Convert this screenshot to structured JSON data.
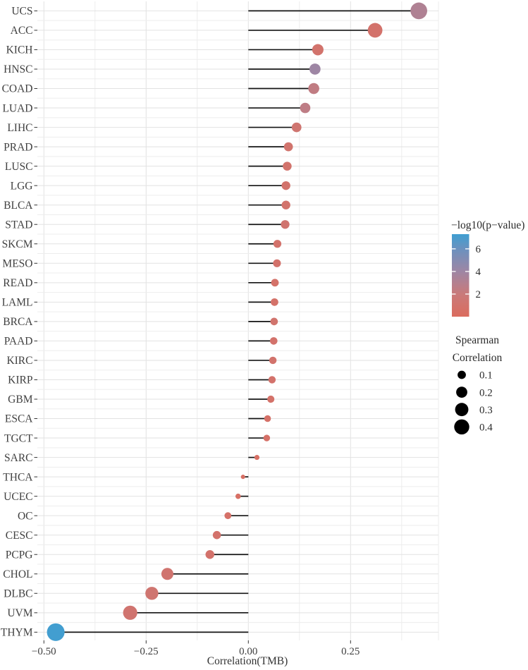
{
  "figure": {
    "background": "#ffffff",
    "stem_color": "#141414",
    "grid_major_color": "#e2e2e2",
    "grid_minor_color": "#ededed",
    "axis_text_color": "#404040",
    "legend_text_color": "#2b2b2b",
    "tick_mark_color": "#333333"
  },
  "chart_data": {
    "type": "lollipop",
    "orientation": "horizontal",
    "title": "",
    "xlabel": "Correlation(TMB)",
    "ylabel": "",
    "xlim": [
      -0.516,
      0.465
    ],
    "x_major_ticks": [
      -0.5,
      -0.25,
      0.0,
      0.25
    ],
    "x_minor_ticks": [
      -0.375,
      -0.125,
      0.125,
      0.375
    ],
    "x_tick_labels": [
      "−0.50",
      "−0.25",
      "0.00",
      "0.25"
    ],
    "grid": true,
    "categories": [
      "UCS",
      "ACC",
      "KICH",
      "HNSC",
      "COAD",
      "LUAD",
      "LIHC",
      "PRAD",
      "LUSC",
      "LGG",
      "BLCA",
      "STAD",
      "SKCM",
      "MESO",
      "READ",
      "LAML",
      "BRCA",
      "PAAD",
      "KIRC",
      "KIRP",
      "GBM",
      "ESCA",
      "TGCT",
      "SARC",
      "THCA",
      "UCEC",
      "OC",
      "CESC",
      "PCPG",
      "CHOL",
      "DLBC",
      "UVM",
      "THYM"
    ],
    "series": [
      {
        "name": "Spearman Correlation",
        "values": [
          0.417,
          0.31,
          0.17,
          0.163,
          0.16,
          0.139,
          0.118,
          0.098,
          0.095,
          0.092,
          0.092,
          0.09,
          0.071,
          0.07,
          0.065,
          0.064,
          0.063,
          0.062,
          0.06,
          0.058,
          0.055,
          0.047,
          0.045,
          0.021,
          -0.013,
          -0.025,
          -0.05,
          -0.077,
          -0.094,
          -0.198,
          -0.236,
          -0.289,
          -0.471
        ]
      },
      {
        "name": "-log10(p-value)",
        "values": [
          3.2,
          0.9,
          1.0,
          4.0,
          2.4,
          2.5,
          1.3,
          1.1,
          1.0,
          1.0,
          1.0,
          1.2,
          0.9,
          0.9,
          0.8,
          0.8,
          1.1,
          0.9,
          1.0,
          0.9,
          0.8,
          0.7,
          0.7,
          0.5,
          0.4,
          0.5,
          0.7,
          0.9,
          0.9,
          1.2,
          1.3,
          1.2,
          7.2
        ]
      }
    ],
    "color_legend": {
      "title": "−log10(p−value)",
      "tick_values": [
        6,
        4,
        2
      ],
      "tick_labels": [
        "6",
        "4",
        "2"
      ],
      "value_range": [
        0,
        7.3
      ],
      "gradient_stops": [
        {
          "value": 7.3,
          "color": "#3f9fd1"
        },
        {
          "value": 6.0,
          "color": "#6b91bf"
        },
        {
          "value": 4.0,
          "color": "#9e86a4"
        },
        {
          "value": 2.0,
          "color": "#c97a7a"
        },
        {
          "value": 0.0,
          "color": "#db6c5e"
        }
      ]
    },
    "size_legend": {
      "title_line1": "Spearman",
      "title_line2": "Correlation",
      "items": [
        0.1,
        0.2,
        0.3,
        0.4
      ],
      "item_labels": [
        "0.1",
        "0.2",
        "0.3",
        "0.4"
      ],
      "dot_color": "#000000"
    }
  }
}
